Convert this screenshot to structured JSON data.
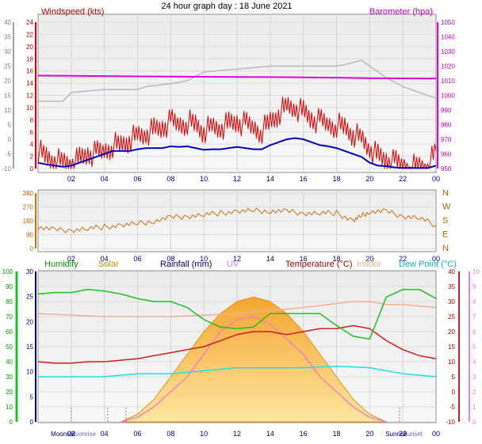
{
  "title": "24 hour graph day : 18 June 2021",
  "x_ticks": [
    "02",
    "04",
    "06",
    "08",
    "10",
    "12",
    "14",
    "16",
    "18",
    "20",
    "22",
    "00"
  ],
  "panels": {
    "wind": {
      "left_label": "Windspeed (kts)",
      "right_label": "Barometer (hpa)",
      "left_ticks_outer": [
        "40",
        "35",
        "30",
        "25",
        "20",
        "15",
        "10",
        "5",
        "0",
        "-5",
        "-10"
      ],
      "left_ticks_inner": [
        "24",
        "22",
        "20",
        "18",
        "16",
        "14",
        "12",
        "10",
        "8",
        "6",
        "4",
        "2",
        "0"
      ],
      "right_ticks": [
        "1050",
        "1040",
        "1030",
        "1020",
        "1010",
        "1000",
        "990",
        "980",
        "970",
        "960",
        "950"
      ]
    },
    "direction": {
      "left_ticks": [
        "360",
        "270",
        "180",
        "90",
        "0"
      ],
      "right_labels": [
        "N",
        "W",
        "S",
        "E",
        "N"
      ]
    },
    "climate": {
      "legend": [
        "Humidity",
        "Solar",
        "Rainfall (mm)",
        "UV",
        "Temperature (°C)",
        "Indoor",
        "Dew Point (°C)"
      ],
      "humidity_ticks": [
        "100",
        "90",
        "80",
        "70",
        "60",
        "50",
        "40",
        "30",
        "20",
        "10",
        "0"
      ],
      "rain_ticks": [
        "30",
        "25",
        "20",
        "15",
        "10",
        "5",
        "0"
      ],
      "temp_ticks": [
        "40",
        "35",
        "30",
        "25",
        "20",
        "15",
        "10",
        "5",
        "0",
        "-5",
        "-10"
      ],
      "uv_ticks": [
        "10",
        "9",
        "8",
        "7",
        "6",
        "5",
        "4",
        "3",
        "2",
        "1",
        "0"
      ],
      "bottom_labels": [
        "Moonset",
        "Moonrise",
        "Sunrise",
        "Sunset"
      ]
    }
  },
  "chart_data": [
    {
      "type": "line",
      "x_unit": "hour",
      "x_range": [
        0,
        24
      ],
      "series": [
        {
          "name": "Windspeed (kts)",
          "color": "#e00000",
          "axis": "wind_kts",
          "ylim": [
            0,
            25
          ],
          "x": [
            0,
            0.5,
            1,
            1.5,
            2,
            2.5,
            3,
            3.5,
            4,
            4.5,
            5,
            5.5,
            6,
            6.5,
            7,
            7.5,
            8,
            8.5,
            9,
            9.5,
            10,
            10.5,
            11,
            11.5,
            12,
            12.5,
            13,
            13.5,
            14,
            14.5,
            15,
            15.5,
            16,
            16.5,
            17,
            17.5,
            18,
            18.5,
            19,
            19.5,
            20,
            20.5,
            21,
            21.5,
            22,
            22.5,
            23,
            23.5,
            24
          ],
          "y": [
            3,
            2,
            1.5,
            1,
            1,
            1.5,
            2.5,
            2.5,
            3,
            4,
            4,
            5,
            5.5,
            6,
            6.5,
            7,
            8,
            7.5,
            8,
            7.5,
            6.5,
            7,
            7,
            7.5,
            8,
            7.5,
            7,
            6.5,
            8,
            9.5,
            10.5,
            10.5,
            9.5,
            8.5,
            8,
            7.5,
            7.5,
            7,
            6,
            5,
            3.5,
            2,
            1.5,
            1,
            0.5,
            0.3,
            0.3,
            0.3,
            3
          ]
        },
        {
          "name": "Windspeed avg (kts)",
          "color": "#0000c0",
          "axis": "wind_kts",
          "ylim": [
            0,
            25
          ],
          "x": [
            0,
            0.5,
            1,
            1.5,
            2,
            2.5,
            3,
            3.5,
            4,
            4.5,
            5,
            5.5,
            6,
            6.5,
            7,
            7.5,
            8,
            8.5,
            9,
            9.5,
            10,
            10.5,
            11,
            11.5,
            12,
            12.5,
            13,
            13.5,
            14,
            14.5,
            15,
            15.5,
            16,
            16.5,
            17,
            17.5,
            18,
            18.5,
            19,
            19.5,
            20,
            20.5,
            21,
            21.5,
            22,
            22.5,
            23,
            23.5,
            24
          ],
          "y": [
            1,
            0.7,
            0.5,
            0.3,
            0.5,
            1,
            1.5,
            2,
            2.5,
            3,
            3,
            3,
            3.3,
            3.5,
            3.5,
            3.5,
            3.8,
            3.7,
            3.8,
            3.5,
            3.2,
            3.3,
            3.3,
            3.5,
            3.7,
            3.5,
            3.3,
            3.3,
            4,
            4.5,
            5,
            5.2,
            5,
            4.5,
            4,
            3.8,
            3.5,
            3,
            2.5,
            2,
            1,
            0.5,
            0.4,
            0.2,
            0.1,
            0.1,
            0.1,
            0.1,
            0.5
          ]
        },
        {
          "name": "Barometer (hpa)",
          "color": "#e000e0",
          "axis": "hpa",
          "ylim": [
            950,
            1050
          ],
          "x": [
            0,
            2,
            4,
            6,
            8,
            10,
            12,
            14,
            16,
            18,
            20,
            22,
            24
          ],
          "y": [
            1013.5,
            1013.4,
            1013.2,
            1013,
            1012.8,
            1012.7,
            1012.6,
            1012.5,
            1012.3,
            1012.1,
            1011.8,
            1011.6,
            1011.5
          ]
        },
        {
          "name": "Windspeed outer",
          "color": "#b8b8b8",
          "axis": "wind_outer",
          "ylim": [
            -10,
            40
          ],
          "x": [
            0,
            1.5,
            2,
            4,
            6,
            6.5,
            8,
            9,
            10,
            12,
            14,
            16,
            18,
            18.5,
            19.5,
            20,
            21,
            22,
            24
          ],
          "y": [
            13,
            13,
            16,
            17,
            17,
            18,
            19,
            20,
            23,
            24,
            25,
            25,
            25,
            25.5,
            27,
            25,
            21,
            18,
            14
          ]
        }
      ]
    },
    {
      "type": "line",
      "x_unit": "hour",
      "series": [
        {
          "name": "Wind direction",
          "color": "#d07010",
          "axis": "degrees",
          "ylim": [
            0,
            360
          ],
          "x": [
            0,
            1,
            2,
            3,
            4,
            5,
            6,
            7,
            8,
            9,
            10,
            11,
            12,
            13,
            14,
            15,
            16,
            17,
            18,
            19,
            19.5,
            20,
            21,
            22,
            23,
            24
          ],
          "y": [
            140,
            120,
            120,
            130,
            140,
            150,
            160,
            180,
            200,
            210,
            220,
            230,
            240,
            245,
            245,
            240,
            230,
            230,
            230,
            180,
            210,
            240,
            240,
            210,
            200,
            150
          ]
        }
      ]
    },
    {
      "type": "area",
      "x_unit": "hour",
      "series": [
        {
          "name": "Solar",
          "color": "#f8b020",
          "axis": "solar",
          "x": [
            5,
            6,
            7,
            8,
            9,
            10,
            11,
            12,
            13,
            14,
            15,
            16,
            17,
            18,
            19,
            20,
            21
          ],
          "y": [
            0,
            0.05,
            0.15,
            0.3,
            0.45,
            0.6,
            0.72,
            0.8,
            0.83,
            0.8,
            0.72,
            0.6,
            0.45,
            0.3,
            0.15,
            0.05,
            0
          ]
        },
        {
          "name": "Humidity",
          "color": "#20c020",
          "axis": "humidity",
          "ylim": [
            0,
            100
          ],
          "x": [
            0,
            1,
            2,
            3,
            4,
            5,
            6,
            7,
            8,
            9,
            10,
            11,
            12,
            13,
            14,
            15,
            16,
            17,
            17.5,
            18,
            19,
            20,
            21,
            22,
            23,
            24
          ],
          "y": [
            85,
            86,
            86,
            88,
            87,
            85,
            82,
            80,
            80,
            76,
            68,
            63,
            62,
            63,
            72,
            72,
            72,
            72,
            68,
            64,
            57,
            55,
            83,
            88,
            88,
            82
          ]
        },
        {
          "name": "Temperature (°C)",
          "color": "#d02020",
          "axis": "temp",
          "ylim": [
            -10,
            40
          ],
          "x": [
            0,
            1,
            2,
            3,
            4,
            5,
            6,
            7,
            8,
            9,
            10,
            11,
            12,
            13,
            14,
            15,
            16,
            17,
            18,
            19,
            20,
            21,
            22,
            23,
            24
          ],
          "y": [
            10,
            9.5,
            9.5,
            10,
            10,
            10.5,
            11,
            12,
            13,
            14,
            15,
            17,
            19,
            20,
            20,
            19,
            20,
            21,
            21,
            22,
            21,
            17,
            14,
            12,
            11
          ]
        },
        {
          "name": "Indoor",
          "color": "#f0b090",
          "axis": "temp",
          "ylim": [
            -10,
            40
          ],
          "x": [
            0,
            4,
            8,
            12,
            16,
            19,
            20,
            21,
            22,
            24
          ],
          "y": [
            26,
            25,
            25,
            26,
            28,
            30,
            30,
            29,
            29,
            28
          ]
        },
        {
          "name": "Dew Point (°C)",
          "color": "#20e0e0",
          "axis": "temp",
          "ylim": [
            -10,
            40
          ],
          "x": [
            0,
            2,
            4,
            6,
            8,
            10,
            12,
            14,
            16,
            18,
            20,
            22,
            24
          ],
          "y": [
            5,
            5,
            5,
            6,
            6,
            7,
            8,
            8,
            8,
            8.5,
            8,
            6,
            5
          ]
        },
        {
          "name": "UV",
          "color": "#f080c0",
          "axis": "uv",
          "ylim": [
            0,
            10
          ],
          "x": [
            5,
            6,
            7,
            8,
            9,
            10,
            11,
            12,
            13,
            14,
            15,
            16,
            17,
            18,
            19,
            20,
            21
          ],
          "y": [
            0,
            0.3,
            1,
            2,
            3,
            4.5,
            6,
            6.8,
            7,
            6.5,
            5.5,
            4.5,
            3,
            2,
            1,
            0.3,
            0
          ]
        }
      ]
    }
  ],
  "colors": {
    "humidity": "#00a000",
    "solar": "#c09000",
    "rainfall": "#000080",
    "uv": "#e080e0",
    "temperature": "#b00000",
    "indoor": "#e0b090",
    "dewpoint": "#00c0c0",
    "wind_title": "#c00000",
    "baro_title": "#c000c0"
  }
}
